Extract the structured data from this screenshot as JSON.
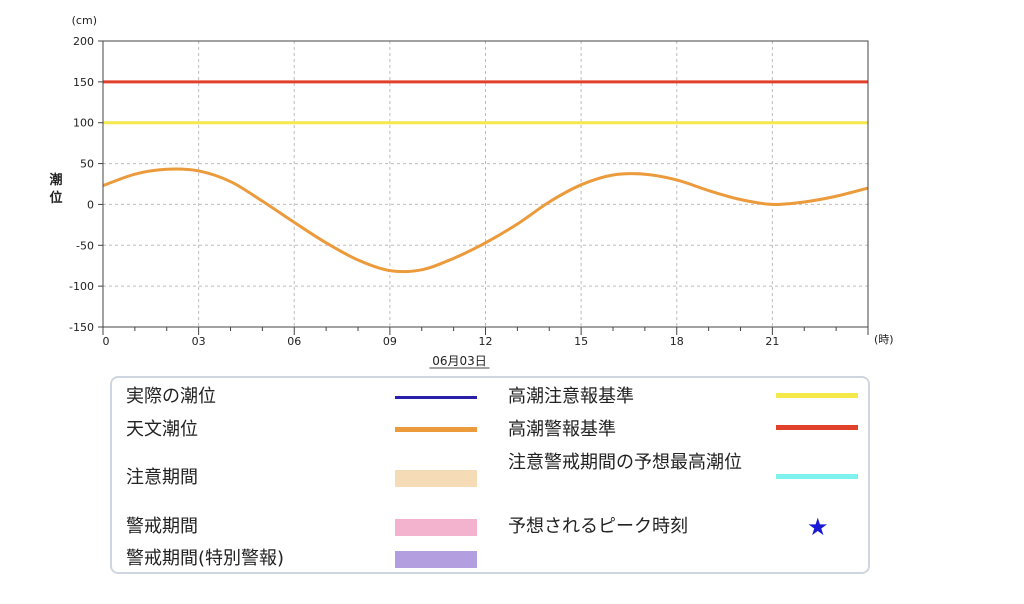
{
  "chart_data": {
    "type": "line",
    "yunit": "(cm)",
    "ylabel": "潮位",
    "xunit": "(時)",
    "date_label": "06月03日",
    "ylim": [
      -150,
      200
    ],
    "xlim": [
      0,
      24
    ],
    "yticks": [
      "200",
      "150",
      "100",
      "50",
      "0",
      "-50",
      "-100",
      "-150"
    ],
    "ytick_values": [
      200,
      150,
      100,
      50,
      0,
      -50,
      -100,
      -150
    ],
    "xticks": [
      "0",
      "03",
      "06",
      "09",
      "12",
      "15",
      "18",
      "21"
    ],
    "xtick_values": [
      0,
      3,
      6,
      9,
      12,
      15,
      18,
      21
    ],
    "grid": true,
    "reference_lines": [
      {
        "name": "高潮警報基準",
        "value": 150,
        "color": "#e0412b"
      },
      {
        "name": "高潮注意報基準",
        "value": 100,
        "color": "#f5e84a"
      }
    ],
    "series": [
      {
        "name": "天文潮位",
        "color": "#eb9a3c",
        "x": [
          0,
          1,
          2,
          3,
          4,
          5,
          6,
          7,
          8,
          9,
          10,
          11,
          12,
          13,
          14,
          15,
          16,
          17,
          18,
          19,
          20,
          21,
          22,
          23,
          24
        ],
        "values": [
          23,
          37,
          43,
          41,
          28,
          4,
          -22,
          -47,
          -68,
          -81,
          -80,
          -66,
          -47,
          -24,
          3,
          24,
          36,
          37,
          30,
          17,
          6,
          0,
          3,
          10,
          20
        ]
      }
    ]
  },
  "legend": {
    "items": [
      {
        "label": "実際の潮位",
        "color": "#2a1fa8",
        "kind": "line"
      },
      {
        "label": "天文潮位",
        "color": "#eb9a3c",
        "kind": "thick"
      },
      {
        "label": "注意期間",
        "color": "#f6dcb6",
        "kind": "box"
      },
      {
        "label": "警戒期間",
        "color": "#f3b3cf",
        "kind": "box"
      },
      {
        "label": "警戒期間(特別警報)",
        "color": "#b39ee0",
        "kind": "box"
      },
      {
        "label": "高潮注意報基準",
        "color": "#f5e84a",
        "kind": "thick"
      },
      {
        "label": "高潮警報基準",
        "color": "#e0412b",
        "kind": "thick"
      },
      {
        "label": "注意警戒期間の予想最高潮位",
        "color": "#7ef2ef",
        "kind": "thick"
      },
      {
        "label": "予想されるピーク時刻",
        "color": "#1a1ad6",
        "kind": "star",
        "symbol": "★"
      }
    ]
  }
}
